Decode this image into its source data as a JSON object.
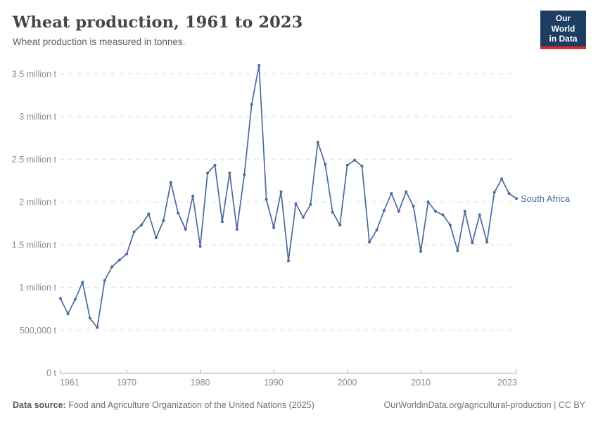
{
  "header": {
    "title": "Wheat production, 1961 to 2023",
    "subtitle": "Wheat production is measured in tonnes.",
    "logo": {
      "line1": "Our World",
      "line2": "in Data",
      "bg_color": "#1d3d63",
      "accent_color": "#dc2a2a"
    }
  },
  "chart_data": {
    "type": "line",
    "title": "Wheat production, 1961 to 2023",
    "unit": "tonnes",
    "xlabel": "",
    "ylabel": "",
    "xlim": [
      1961,
      2023
    ],
    "ylim": [
      0,
      3500000
    ],
    "grid": true,
    "legend_position": "end-of-line-label",
    "x_ticks": [
      1961,
      1970,
      1980,
      1990,
      2000,
      2010,
      2023
    ],
    "y_ticks": [
      {
        "value": 0,
        "label": "0 t"
      },
      {
        "value": 500000,
        "label": "500,000 t"
      },
      {
        "value": 1000000,
        "label": "1 million t"
      },
      {
        "value": 1500000,
        "label": "1.5 million t"
      },
      {
        "value": 2000000,
        "label": "2 million t"
      },
      {
        "value": 2500000,
        "label": "2.5 million t"
      },
      {
        "value": 3000000,
        "label": "3 million t"
      },
      {
        "value": 3500000,
        "label": "3.5 million t"
      }
    ],
    "series": [
      {
        "name": "South Africa",
        "color": "#4C6A9C",
        "x": [
          1961,
          1962,
          1963,
          1964,
          1965,
          1966,
          1967,
          1968,
          1969,
          1970,
          1971,
          1972,
          1973,
          1974,
          1975,
          1976,
          1977,
          1978,
          1979,
          1980,
          1981,
          1982,
          1983,
          1984,
          1985,
          1986,
          1987,
          1988,
          1989,
          1990,
          1991,
          1992,
          1993,
          1994,
          1995,
          1996,
          1997,
          1998,
          1999,
          2000,
          2001,
          2002,
          2003,
          2004,
          2005,
          2006,
          2007,
          2008,
          2009,
          2010,
          2011,
          2012,
          2013,
          2014,
          2015,
          2016,
          2017,
          2018,
          2019,
          2020,
          2021,
          2022,
          2023
        ],
        "values": [
          870000,
          690000,
          860000,
          1060000,
          640000,
          530000,
          1080000,
          1240000,
          1320000,
          1390000,
          1650000,
          1730000,
          1860000,
          1580000,
          1780000,
          2230000,
          1870000,
          1680000,
          2070000,
          1480000,
          2340000,
          2430000,
          1770000,
          2340000,
          1680000,
          2320000,
          3140000,
          3600000,
          2030000,
          1700000,
          2120000,
          1310000,
          1980000,
          1820000,
          1970000,
          2700000,
          2440000,
          1880000,
          1730000,
          2430000,
          2490000,
          2420000,
          1530000,
          1670000,
          1900000,
          2100000,
          1890000,
          2120000,
          1950000,
          1420000,
          2000000,
          1890000,
          1850000,
          1730000,
          1430000,
          1890000,
          1520000,
          1850000,
          1530000,
          2110000,
          2270000,
          2100000,
          2040000
        ]
      }
    ]
  },
  "footer": {
    "source_label": "Data source:",
    "source_text": "Food and Agriculture Organization of the United Nations (2025)",
    "credit": "OurWorldinData.org/agricultural-production | CC BY"
  }
}
